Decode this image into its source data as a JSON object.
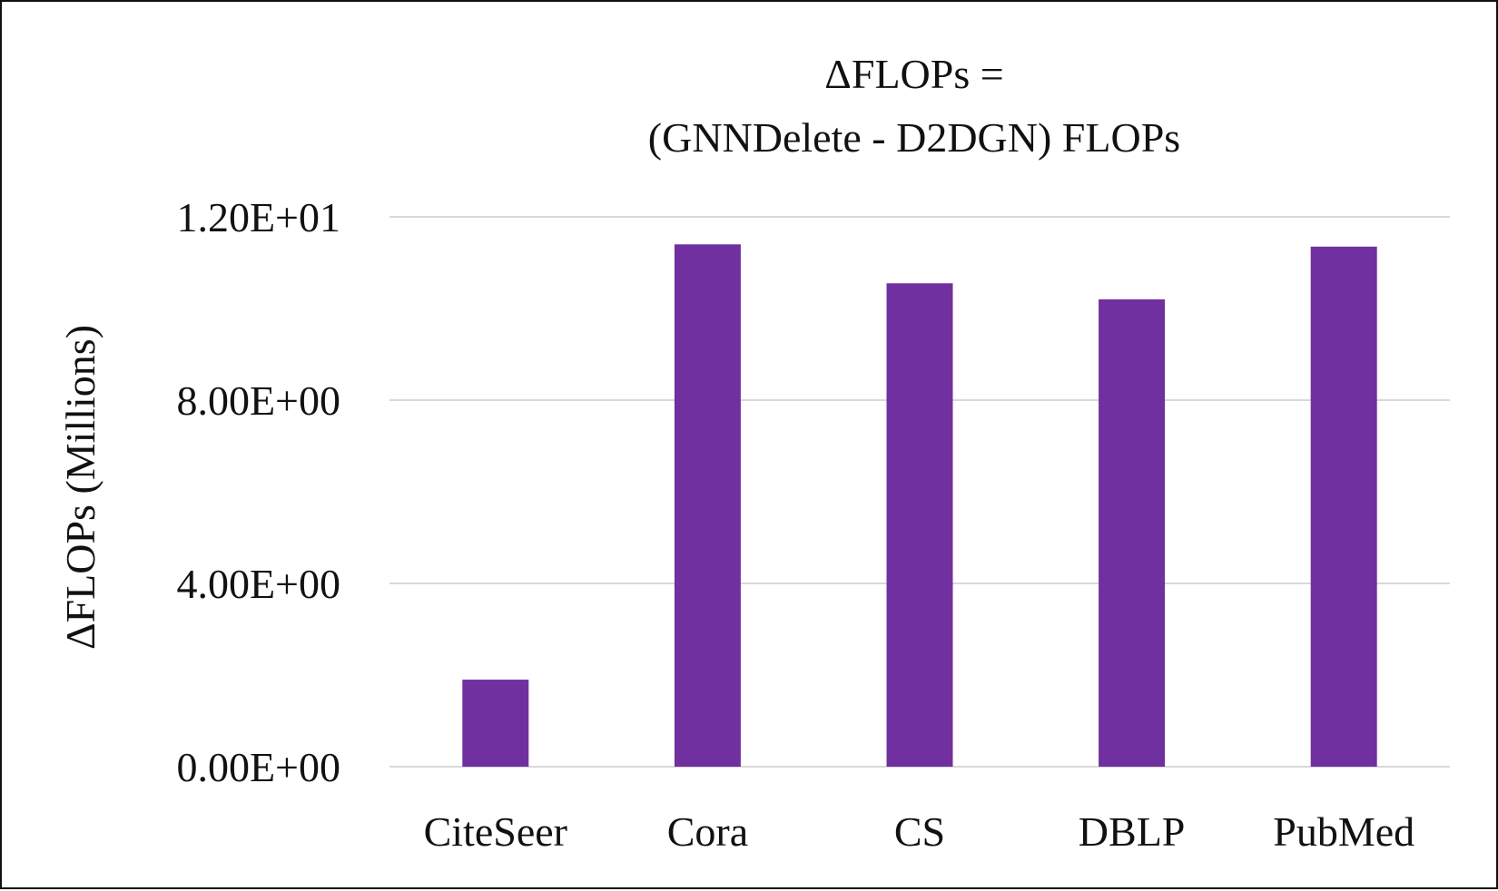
{
  "chart_data": {
    "type": "bar",
    "title_lines": [
      "ΔFLOPs =",
      "(GNNDelete - D2DGN) FLOPs"
    ],
    "xlabel": "",
    "ylabel": "ΔFLOPs (Millions)",
    "categories": [
      "CiteSeer",
      "Cora",
      "CS",
      "DBLP",
      "PubMed"
    ],
    "values": [
      1.9,
      11.4,
      10.55,
      10.2,
      11.35
    ],
    "ylim": [
      0,
      12
    ],
    "yticks": [
      0,
      4,
      8,
      12
    ],
    "ytick_labels": [
      "0.00E+00",
      "4.00E+00",
      "8.00E+00",
      "1.20E+01"
    ],
    "grid": true,
    "legend": "none",
    "bar_color": "#7030a0"
  }
}
